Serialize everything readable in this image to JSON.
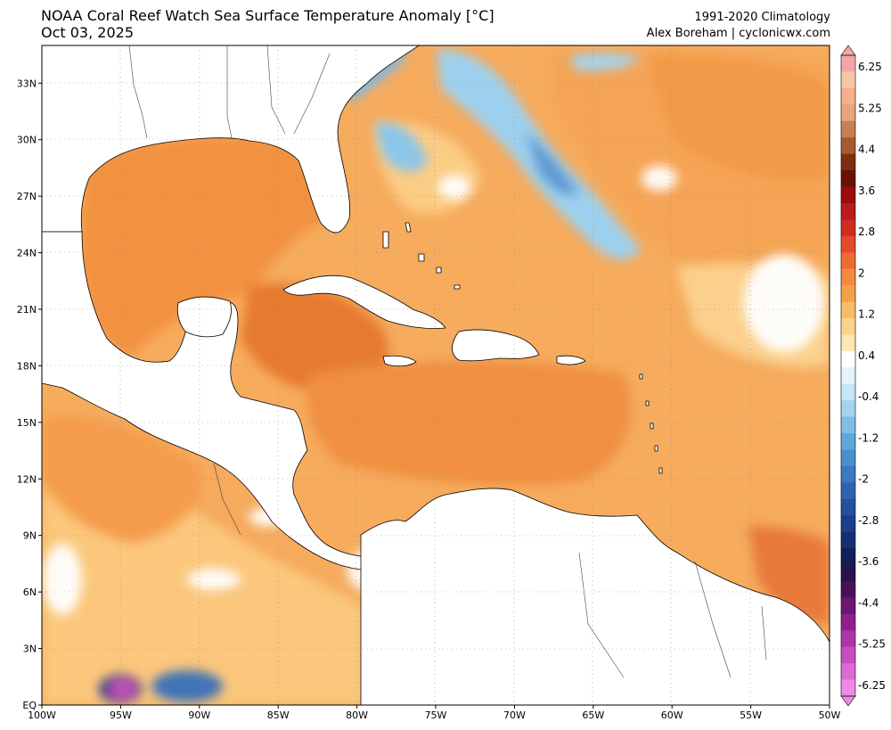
{
  "header": {
    "title": "NOAA Coral Reef Watch Sea Surface Temperature Anomaly [°C]",
    "date": "Oct 03, 2025",
    "climatology": "1991-2020 Climatology",
    "credit": "Alex Boreham | cyclonicwx.com"
  },
  "map": {
    "lon_range": [
      -100,
      -50
    ],
    "lat_range": [
      0,
      35
    ],
    "lon_ticks": [
      "100W",
      "95W",
      "90W",
      "85W",
      "80W",
      "75W",
      "70W",
      "65W",
      "60W",
      "55W",
      "50W"
    ],
    "lat_ticks": [
      "EQ",
      "3N",
      "6N",
      "9N",
      "12N",
      "15N",
      "18N",
      "21N",
      "24N",
      "27N",
      "30N",
      "33N"
    ],
    "colors": {
      "land": "#ffffff",
      "ocean_warm": "#f39a4a",
      "ocean_mild": "#fac57f",
      "ocean_hot": "#e4742f",
      "ocean_cool": "#9fd1ee",
      "ocean_cold": "#4b88c8",
      "ocean_extreme_cold": "#c64ec0"
    }
  },
  "colorbar": {
    "labels": [
      "6.25",
      "5.25",
      "4.4",
      "3.6",
      "2.8",
      "2",
      "1.2",
      "0.4",
      "-0.4",
      "-1.2",
      "-2",
      "-2.8",
      "-3.6",
      "-4.4",
      "-5.25",
      "-6.25"
    ],
    "colors": [
      "#f2a7a7",
      "#f8c4a8",
      "#f4b08a",
      "#e8a57b",
      "#c77f55",
      "#a85a2f",
      "#7e2f10",
      "#6b1005",
      "#9b0d0d",
      "#b81c1c",
      "#d12b1f",
      "#e34a2a",
      "#ee6a33",
      "#f38a3f",
      "#f5a04a",
      "#f8bd64",
      "#fbd388",
      "#fde7b4",
      "#ffffff",
      "#e5f3fb",
      "#c6e5f6",
      "#a5d3ef",
      "#80bee6",
      "#5fa6db",
      "#4b8fcf",
      "#3b79c2",
      "#2f63b1",
      "#24509e",
      "#1b3f8a",
      "#152f73",
      "#121f58",
      "#28134a",
      "#4a1056",
      "#6d1672",
      "#8e1f8d",
      "#ad35a9",
      "#c84dc2",
      "#dc6bd6",
      "#ec8ae5"
    ]
  }
}
